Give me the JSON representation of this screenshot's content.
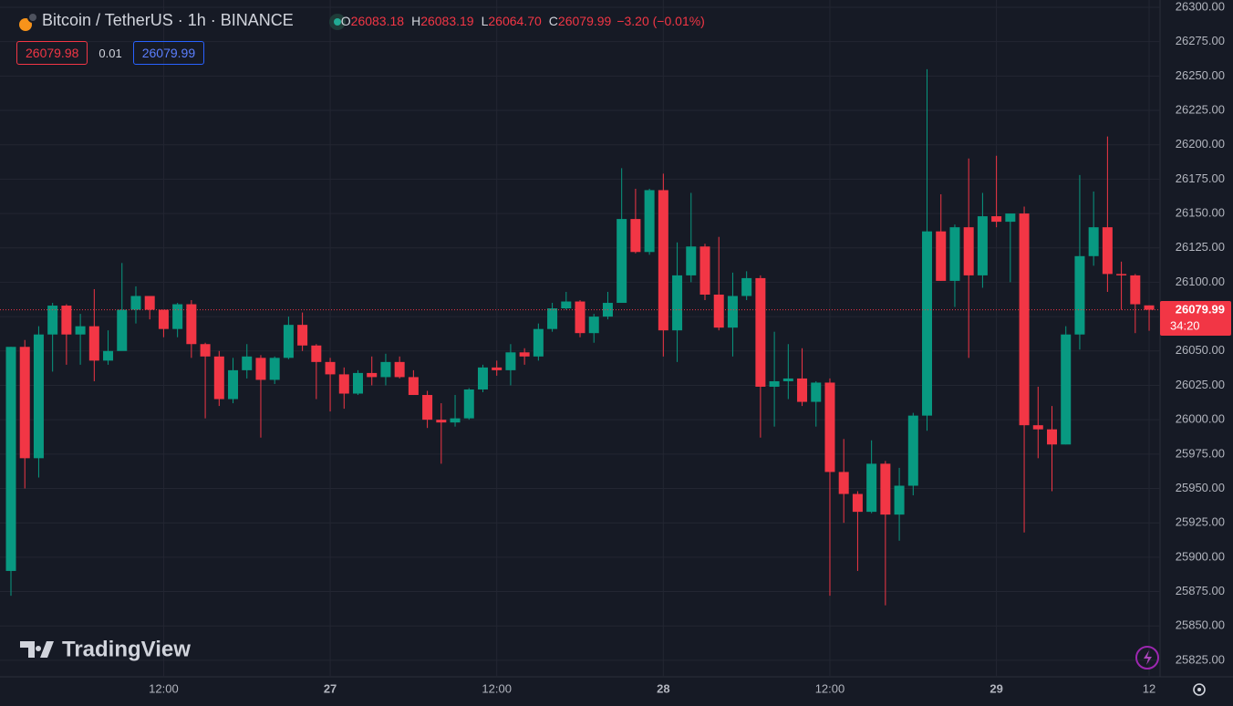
{
  "header": {
    "symbol": "Bitcoin / TetherUS · 1h · BINANCE",
    "ohlc": [
      {
        "key": "O",
        "value": "26083.18"
      },
      {
        "key": "H",
        "value": "26083.19"
      },
      {
        "key": "L",
        "value": "26064.70"
      },
      {
        "key": "C",
        "value": "26079.99"
      }
    ],
    "change": "−3.20 (−0.01%)",
    "bid": "26079.98",
    "spread": "0.01",
    "ask": "26079.99"
  },
  "price_tag": {
    "price": "26079.99",
    "countdown": "34:20"
  },
  "logo": "TradingView",
  "chart_data": {
    "type": "candlestick",
    "up_color": "#089981",
    "down_color": "#f23645",
    "grid": true,
    "categories": [
      null,
      null,
      null,
      null,
      null,
      null,
      null,
      null,
      null,
      null,
      null,
      "12:00",
      null,
      null,
      null,
      null,
      null,
      null,
      null,
      null,
      null,
      null,
      null,
      "27",
      null,
      null,
      null,
      null,
      null,
      null,
      null,
      null,
      null,
      null,
      null,
      "12:00",
      null,
      null,
      null,
      null,
      null,
      null,
      null,
      null,
      null,
      null,
      null,
      "28",
      null,
      null,
      null,
      null,
      null,
      null,
      null,
      null,
      null,
      null,
      null,
      "12:00",
      null,
      null,
      null,
      null,
      null,
      null,
      null,
      null,
      null,
      null,
      null,
      "29",
      null,
      null,
      null,
      null,
      null,
      null,
      null,
      null,
      null,
      null,
      "12"
    ],
    "series": [
      {
        "open": [
          25890,
          26053,
          25972,
          26062,
          26083,
          26062,
          26068,
          26043,
          26050,
          26080,
          26090,
          26080,
          26066,
          26084,
          26055,
          26046,
          26015,
          26036,
          26045,
          26029,
          26045,
          26069,
          26054,
          26042,
          26033,
          26019,
          26034,
          26031,
          26042,
          26031,
          26018,
          26000,
          25998,
          26001,
          26022,
          26038,
          26036,
          26049,
          26046,
          26066,
          26081,
          26086,
          26063,
          26075,
          26085,
          26146,
          26122,
          26167,
          26065,
          26105,
          26126,
          26091,
          26067,
          26090,
          26103,
          26024,
          26028,
          26030,
          26013,
          26027,
          25962,
          25946,
          25933,
          25968,
          25931,
          25952,
          26003,
          26137,
          26101,
          26140,
          26105,
          26148,
          26144,
          26150,
          25996,
          25993,
          25982,
          26062,
          26119,
          26140,
          26106,
          26105,
          26083.18
        ],
        "high": [
          26053,
          26058,
          26068,
          26085,
          26084,
          26077,
          26095,
          26065,
          26114,
          26097,
          26090,
          26078,
          26085,
          26087,
          26056,
          26050,
          26045,
          26055,
          26047,
          26046,
          26075,
          26078,
          26055,
          26045,
          26038,
          26036,
          26046,
          26048,
          26046,
          26036,
          26021,
          26012,
          26018,
          26023,
          26040,
          26043,
          26055,
          26052,
          26070,
          26085,
          26093,
          26087,
          26077,
          26093,
          26183,
          26168,
          26168,
          26179,
          26129,
          26165,
          26128,
          26133,
          26107,
          26108,
          26105,
          26064,
          26055,
          26052,
          26028,
          26030,
          25986,
          25948,
          25985,
          25970,
          25965,
          26005,
          26255,
          26164,
          26142,
          26190,
          26165,
          26192,
          26150,
          26155,
          26024,
          26010,
          26068,
          26178,
          26166,
          26206,
          26115,
          26106,
          26083.19
        ],
        "low": [
          25872,
          25950,
          25958,
          26035,
          26040,
          26040,
          26028,
          26040,
          26052,
          26070,
          26073,
          26060,
          26060,
          26045,
          26001,
          26010,
          26012,
          26030,
          25987,
          26026,
          26044,
          26050,
          26015,
          26006,
          26008,
          26018,
          26025,
          26025,
          26030,
          26018,
          25994,
          25968,
          25995,
          26000,
          26020,
          26032,
          26025,
          26040,
          26043,
          26064,
          26080,
          26060,
          26056,
          26073,
          26085,
          26121,
          26120,
          26046,
          26042,
          26100,
          26087,
          26065,
          26046,
          26087,
          25987,
          25995,
          26015,
          26010,
          25995,
          25872,
          25925,
          25890,
          25932,
          25865,
          25912,
          25945,
          25992,
          26101,
          26082,
          26045,
          26096,
          26140,
          26100,
          25918,
          25972,
          25948,
          25982,
          26051,
          26112,
          26093,
          26080,
          26063,
          26064.7
        ],
        "close": [
          26053,
          25972,
          26062,
          26083,
          26062,
          26068,
          26043,
          26050,
          26080,
          26090,
          26080,
          26066,
          26084,
          26055,
          26046,
          26015,
          26036,
          26046,
          26029,
          26045,
          26069,
          26054,
          26042,
          26033,
          26019,
          26034,
          26031,
          26042,
          26031,
          26018,
          26000,
          25998,
          26001,
          26022,
          26038,
          26036,
          26049,
          26046,
          26066,
          26081,
          26086,
          26063,
          26075,
          26085,
          26146,
          26122,
          26167,
          26065,
          26105,
          26126,
          26091,
          26067,
          26090,
          26103,
          26024,
          26028,
          26030,
          26013,
          26027,
          25962,
          25946,
          25933,
          25968,
          25931,
          25952,
          26003,
          26137,
          26101,
          26140,
          26105,
          26148,
          26144,
          26150,
          25996,
          25993,
          25982,
          26062,
          26119,
          26140,
          26106,
          26105,
          26084,
          26079.99
        ]
      }
    ],
    "ylim": [
      25813,
      26305.3
    ],
    "yticks": [
      {
        "value": 25825,
        "label": "25825.00"
      },
      {
        "value": 25850,
        "label": "25850.00"
      },
      {
        "value": 25875,
        "label": "25875.00"
      },
      {
        "value": 25900,
        "label": "25900.00"
      },
      {
        "value": 25925,
        "label": "25925.00"
      },
      {
        "value": 25950,
        "label": "25950.00"
      },
      {
        "value": 25975,
        "label": "25975.00"
      },
      {
        "value": 26000,
        "label": "26000.00"
      },
      {
        "value": 26025,
        "label": "26025.00"
      },
      {
        "value": 26050,
        "label": "26050.00"
      },
      {
        "value": 26075,
        "label": "26075.00"
      },
      {
        "value": 26100,
        "label": "26100.00"
      },
      {
        "value": 26125,
        "label": "26125.00"
      },
      {
        "value": 26150,
        "label": "26150.00"
      },
      {
        "value": 26175,
        "label": "26175.00"
      },
      {
        "value": 26200,
        "label": "26200.00"
      },
      {
        "value": 26225,
        "label": "26225.00"
      },
      {
        "value": 26250,
        "label": "26250.00"
      },
      {
        "value": 26275,
        "label": "26275.00"
      },
      {
        "value": 26300,
        "label": "26300.00"
      }
    ]
  }
}
